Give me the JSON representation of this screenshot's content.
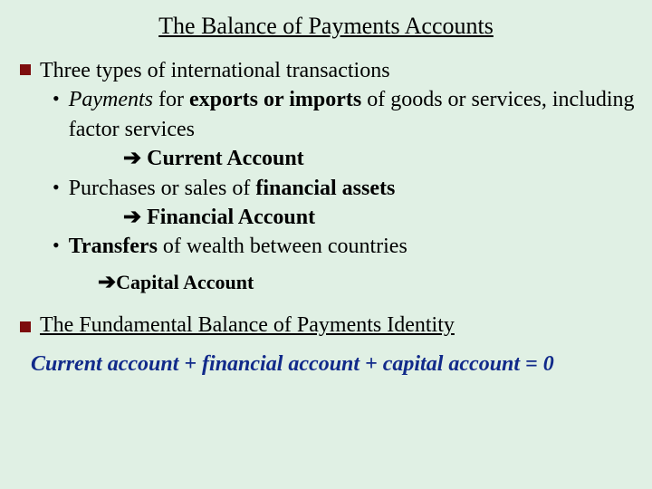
{
  "colors": {
    "background": "#e0f0e4",
    "text": "#000000",
    "bullet_square": "#7d0d0d",
    "accent_navy": "#112a8a"
  },
  "typography": {
    "base_family": "Times New Roman",
    "title_size_pt": 20,
    "body_size_pt": 18
  },
  "title": "The Balance of Payments Accounts",
  "section1": {
    "heading": "Three types of international transactions",
    "items": [
      {
        "runs": [
          {
            "t": "Payments",
            "i": true
          },
          {
            "t": " for "
          },
          {
            "t": "exports or imports",
            "b": true
          },
          {
            "t": " of goods or services, including factor services"
          }
        ],
        "arrow_label": "Current Account"
      },
      {
        "runs": [
          {
            "t": "Purchases or sales of "
          },
          {
            "t": "financial assets",
            "b": true
          }
        ],
        "arrow_label": "Financial Account"
      },
      {
        "runs": [
          {
            "t": "Transfers",
            "b": true
          },
          {
            "t": " of wealth between countries"
          }
        ],
        "arrow_label_capital": "Capital Account"
      }
    ]
  },
  "section2": {
    "heading": "The Fundamental Balance of Payments Identity",
    "equation": "Current account + financial account + capital account = 0"
  },
  "arrow_glyph": "➔"
}
